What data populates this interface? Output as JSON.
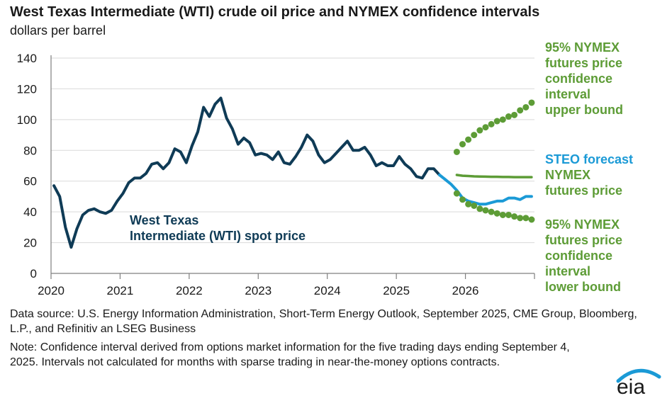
{
  "title": "West Texas Intermediate (WTI) crude oil price and NYMEX confidence intervals",
  "subtitle": "dollars per barrel",
  "labels": {
    "upper": [
      "95% NYMEX",
      "futures price",
      "confidence",
      "interval",
      "upper bound"
    ],
    "steo": "STEO forecast",
    "nymex": [
      "NYMEX",
      "futures price"
    ],
    "lower": [
      "95% NYMEX",
      "futures price",
      "confidence",
      "interval",
      "lower bound"
    ],
    "wti": [
      "West Texas",
      "Intermediate (WTI) spot price"
    ]
  },
  "source": "Data source: U.S. Energy Information Administration, Short-Term Energy Outlook, September 2025, CME Group, Bloomberg, L.P., and Refinitiv an LSEG Business",
  "note": "Note: Confidence interval derived from options market information for the five trading days ending September 4, 2025. Intervals not calculated for months with sparse trading in near-the-money options contracts.",
  "logo_text": "eia",
  "colors": {
    "wti": "#0f3b56",
    "steo": "#1b9ad6",
    "nymex": "#5d9c36",
    "ci": "#5d9c36",
    "logo_arc": "#1b9ad6"
  },
  "chart_data": {
    "type": "line",
    "ylim": [
      0,
      140
    ],
    "yticks": [
      0,
      20,
      40,
      60,
      80,
      100,
      120,
      140
    ],
    "xticks": [
      "2020",
      "2021",
      "2022",
      "2023",
      "2024",
      "2025",
      "2026"
    ],
    "series": [
      {
        "name": "West Texas Intermediate (WTI) spot price",
        "style": "solid",
        "x": [
          "2020-01",
          "2020-02",
          "2020-03",
          "2020-04",
          "2020-05",
          "2020-06",
          "2020-07",
          "2020-08",
          "2020-09",
          "2020-10",
          "2020-11",
          "2020-12",
          "2021-01",
          "2021-02",
          "2021-03",
          "2021-04",
          "2021-05",
          "2021-06",
          "2021-07",
          "2021-08",
          "2021-09",
          "2021-10",
          "2021-11",
          "2021-12",
          "2022-01",
          "2022-02",
          "2022-03",
          "2022-04",
          "2022-05",
          "2022-06",
          "2022-07",
          "2022-08",
          "2022-09",
          "2022-10",
          "2022-11",
          "2022-12",
          "2023-01",
          "2023-02",
          "2023-03",
          "2023-04",
          "2023-05",
          "2023-06",
          "2023-07",
          "2023-08",
          "2023-09",
          "2023-10",
          "2023-11",
          "2023-12",
          "2024-01",
          "2024-02",
          "2024-03",
          "2024-04",
          "2024-05",
          "2024-06",
          "2024-07",
          "2024-08",
          "2024-09",
          "2024-10",
          "2024-11",
          "2024-12",
          "2025-01",
          "2025-02",
          "2025-03",
          "2025-04",
          "2025-05",
          "2025-06",
          "2025-07",
          "2025-08"
        ],
        "values": [
          57,
          50,
          30,
          17,
          29,
          38,
          41,
          42,
          40,
          39,
          41,
          47,
          52,
          59,
          62,
          62,
          65,
          71,
          72,
          68,
          72,
          81,
          79,
          72,
          83,
          92,
          108,
          102,
          110,
          114,
          101,
          94,
          84,
          88,
          85,
          77,
          78,
          77,
          74,
          79,
          72,
          71,
          76,
          82,
          90,
          86,
          77,
          72,
          74,
          78,
          82,
          86,
          80,
          80,
          82,
          77,
          70,
          72,
          70,
          70,
          76,
          71,
          68,
          63,
          62,
          68,
          68,
          64
        ]
      },
      {
        "name": "STEO forecast",
        "style": "solid",
        "x": [
          "2025-08",
          "2025-09",
          "2025-10",
          "2025-11",
          "2025-12",
          "2026-01",
          "2026-02",
          "2026-03",
          "2026-04",
          "2026-05",
          "2026-06",
          "2026-07",
          "2026-08",
          "2026-09",
          "2026-10",
          "2026-11",
          "2026-12"
        ],
        "values": [
          64,
          61,
          58,
          54,
          49,
          47,
          46,
          45,
          45,
          46,
          47,
          47,
          49,
          49,
          48,
          50,
          50
        ]
      },
      {
        "name": "NYMEX futures price",
        "style": "solid",
        "x": [
          "2025-11",
          "2025-12",
          "2026-01",
          "2026-02",
          "2026-03",
          "2026-04",
          "2026-05",
          "2026-06",
          "2026-07",
          "2026-08",
          "2026-09",
          "2026-10",
          "2026-11",
          "2026-12"
        ],
        "values": [
          64,
          63.5,
          63.3,
          63.1,
          63,
          62.9,
          62.8,
          62.8,
          62.7,
          62.7,
          62.6,
          62.6,
          62.6,
          62.6
        ]
      },
      {
        "name": "95% NYMEX futures price confidence interval upper bound",
        "style": "dotted",
        "x": [
          "2025-11",
          "2025-12",
          "2026-01",
          "2026-02",
          "2026-03",
          "2026-04",
          "2026-05",
          "2026-06",
          "2026-07",
          "2026-08",
          "2026-09",
          "2026-10",
          "2026-11",
          "2026-12"
        ],
        "values": [
          79,
          84,
          87,
          90,
          93,
          95,
          97,
          99,
          100,
          102,
          103,
          106,
          108,
          111
        ]
      },
      {
        "name": "95% NYMEX futures price confidence interval lower bound",
        "style": "dotted",
        "x": [
          "2025-11",
          "2025-12",
          "2026-01",
          "2026-02",
          "2026-03",
          "2026-04",
          "2026-05",
          "2026-06",
          "2026-07",
          "2026-08",
          "2026-09",
          "2026-10",
          "2026-11",
          "2026-12"
        ],
        "values": [
          52,
          48,
          45,
          44,
          42,
          41,
          40,
          39,
          38,
          38,
          37,
          36,
          36,
          35
        ]
      }
    ]
  }
}
